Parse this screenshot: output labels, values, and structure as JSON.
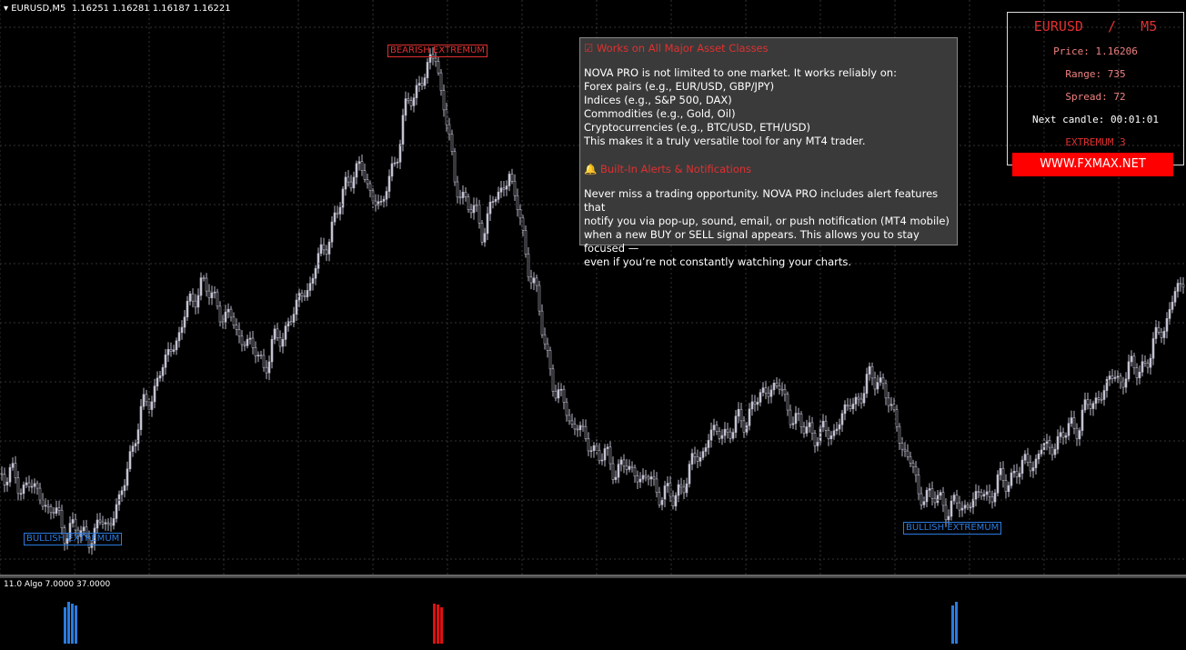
{
  "header": {
    "symbol": "EURUSD,M5",
    "quotes": "1.16251 1.16281 1.16187 1.16221"
  },
  "labels": {
    "bearish": "BEARISH EXTREMUM",
    "bullish_left": "BULLISH EXTREMUM",
    "bullish_right": "BULLISH EXTREMUM"
  },
  "info": {
    "heading1": "Works on All Major Asset Classes",
    "paragraph1": [
      "NOVA PRO is not limited to one market. It works reliably on:",
      "Forex pairs (e.g., EUR/USD, GBP/JPY)",
      "Indices (e.g., S&P 500, DAX)",
      "Commodities (e.g., Gold, Oil)",
      "Cryptocurrencies (e.g., BTC/USD, ETH/USD)",
      "This makes it a truly versatile tool for any MT4 trader."
    ],
    "heading2": "Built-In Alerts & Notifications",
    "paragraph2": [
      "Never miss a trading opportunity. NOVA PRO includes alert features that",
      "notify you via pop-up, sound, email, or push notification (MT4 mobile)",
      "when a new BUY or SELL signal appears. This allows you to stay focused —",
      "even if you’re not constantly watching your charts."
    ]
  },
  "panel": {
    "symbol": "EURUSD",
    "separator": "/",
    "timeframe": "M5",
    "price": "Price: 1.16206",
    "range": "Range: 735",
    "spread": "Spread: 72",
    "next_candle": "Next candle: 00:01:01",
    "extremum": "EXTREMUM 3",
    "website": "WWW.FXMAX.NET"
  },
  "indicator": {
    "label": "11.0 Algo 7.0000 37.0000"
  }
}
